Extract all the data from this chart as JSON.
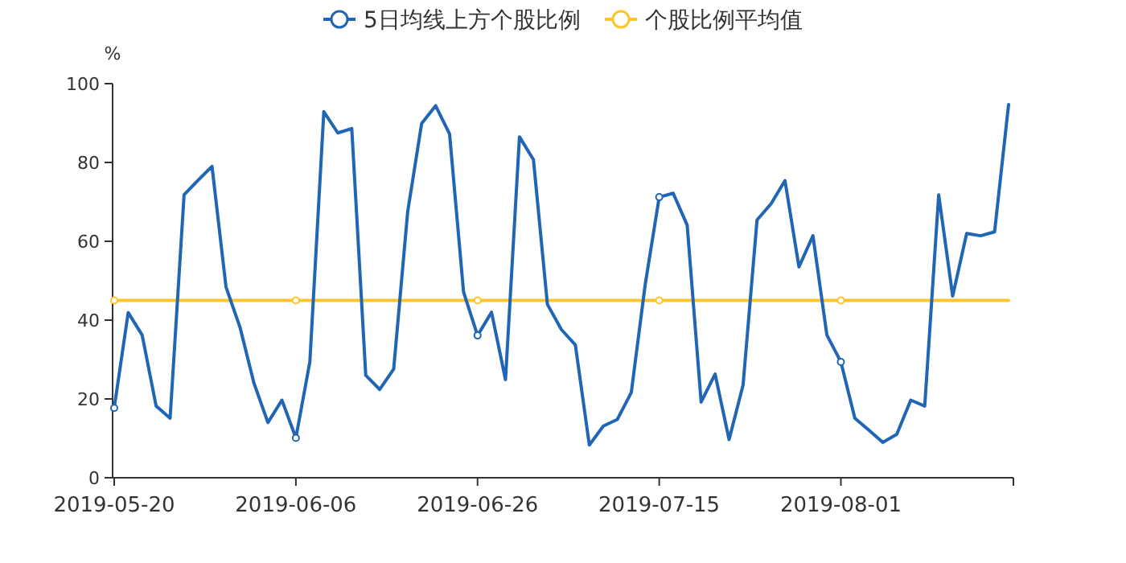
{
  "chart_data": {
    "type": "line",
    "ylabel": "%",
    "ylim": [
      0,
      100
    ],
    "yticks": [
      0,
      20,
      40,
      60,
      80,
      100
    ],
    "legend": "top",
    "categories": [
      "2019-05-20",
      null,
      null,
      null,
      null,
      null,
      null,
      null,
      null,
      null,
      null,
      null,
      null,
      "2019-06-06",
      null,
      null,
      null,
      null,
      null,
      null,
      null,
      null,
      null,
      null,
      null,
      null,
      "2019-06-26",
      null,
      null,
      null,
      null,
      null,
      null,
      null,
      null,
      null,
      null,
      null,
      null,
      "2019-07-15",
      null,
      null,
      null,
      null,
      null,
      null,
      null,
      null,
      null,
      null,
      null,
      null,
      "2019-08-01",
      null,
      null,
      null,
      null,
      null,
      null,
      null,
      null,
      null,
      null,
      null,
      null
    ],
    "series": [
      {
        "name": "5日均线上方个股比例",
        "color": "#2166b5",
        "values": [
          17.7,
          41.9,
          36.2,
          18.2,
          15.1,
          71.8,
          75.5,
          79.0,
          48.4,
          38.2,
          24.0,
          14.0,
          19.7,
          10.1,
          29.4,
          92.9,
          87.5,
          88.6,
          26.0,
          22.4,
          27.6,
          67.5,
          89.9,
          94.4,
          87.2,
          47.1,
          36.1,
          42.0,
          24.9,
          86.5,
          80.7,
          44.0,
          37.6,
          33.7,
          8.3,
          13.1,
          14.8,
          21.6,
          49.1,
          71.2,
          72.2,
          64.1,
          19.2,
          26.3,
          9.7,
          23.5,
          65.4,
          69.5,
          75.4,
          53.5,
          61.4,
          36.2,
          29.4,
          15.1,
          12.1,
          9.0,
          11.0,
          19.7,
          18.2,
          71.8,
          46.1,
          62.0,
          61.4,
          62.4,
          94.7
        ]
      },
      {
        "name": "个股比例平均值",
        "color": "#fcc52b",
        "values": [
          45,
          45,
          45,
          45,
          45,
          45,
          45,
          45,
          45,
          45,
          45,
          45,
          45,
          45,
          45,
          45,
          45,
          45,
          45,
          45,
          45,
          45,
          45,
          45,
          45,
          45,
          45,
          45,
          45,
          45,
          45,
          45,
          45,
          45,
          45,
          45,
          45,
          45,
          45,
          45,
          45,
          45,
          45,
          45,
          45,
          45,
          45,
          45,
          45,
          45,
          45,
          45,
          45,
          45,
          45,
          45,
          45,
          45,
          45,
          45,
          45,
          45,
          45,
          45,
          45
        ]
      }
    ]
  }
}
